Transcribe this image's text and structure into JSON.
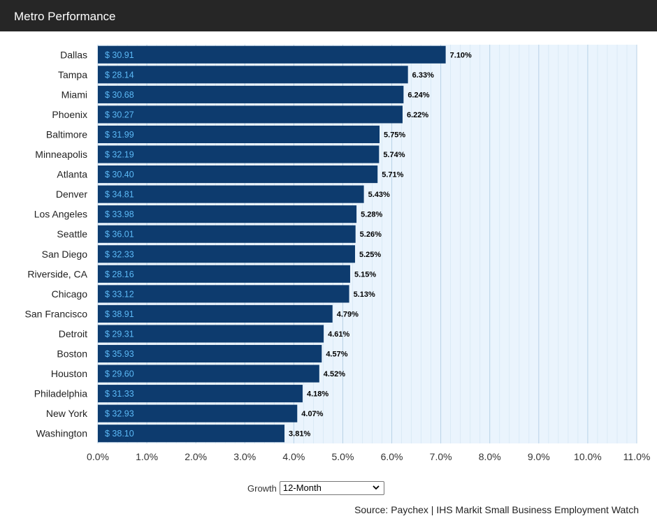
{
  "header": {
    "title": "Metro Performance"
  },
  "controls": {
    "growth_label": "Growth",
    "growth_selected": "12-Month"
  },
  "source": "Source: Paychex | IHS Markit Small Business Employment Watch",
  "colors": {
    "bar": "#0d3b6e",
    "wage_text": "#5bb8f5",
    "plot_bg": "#eaf4fd",
    "grid": "#c7dcec",
    "header_bg": "#262626"
  },
  "icons": {
    "dropdown": "chevron-down-icon"
  },
  "chart_data": {
    "type": "bar",
    "orientation": "horizontal",
    "categories": [
      "Dallas",
      "Tampa",
      "Miami",
      "Phoenix",
      "Baltimore",
      "Minneapolis",
      "Atlanta",
      "Denver",
      "Los Angeles",
      "Seattle",
      "San Diego",
      "Riverside, CA",
      "Chicago",
      "San Francisco",
      "Detroit",
      "Boston",
      "Houston",
      "Philadelphia",
      "New York",
      "Washington"
    ],
    "values": [
      7.1,
      6.33,
      6.24,
      6.22,
      5.75,
      5.74,
      5.71,
      5.43,
      5.28,
      5.26,
      5.25,
      5.15,
      5.13,
      4.79,
      4.61,
      4.57,
      4.52,
      4.18,
      4.07,
      3.81
    ],
    "value_labels": [
      "7.10%",
      "6.33%",
      "6.24%",
      "6.22%",
      "5.75%",
      "5.74%",
      "5.71%",
      "5.43%",
      "5.28%",
      "5.26%",
      "5.25%",
      "5.15%",
      "5.13%",
      "4.79%",
      "4.61%",
      "4.57%",
      "4.52%",
      "4.18%",
      "4.07%",
      "3.81%"
    ],
    "bar_labels": [
      "$ 30.91",
      "$ 28.14",
      "$ 30.68",
      "$ 30.27",
      "$ 31.99",
      "$ 32.19",
      "$ 30.40",
      "$ 34.81",
      "$ 33.98",
      "$ 36.01",
      "$ 32.33",
      "$ 28.16",
      "$ 33.12",
      "$ 38.91",
      "$ 29.31",
      "$ 35.93",
      "$ 29.60",
      "$ 31.33",
      "$ 32.93",
      "$ 38.10"
    ],
    "xlim": [
      0,
      11
    ],
    "xticks": [
      0,
      1,
      2,
      3,
      4,
      5,
      6,
      7,
      8,
      9,
      10,
      11
    ],
    "xtick_labels": [
      "0.0%",
      "1.0%",
      "2.0%",
      "3.0%",
      "4.0%",
      "5.0%",
      "6.0%",
      "7.0%",
      "8.0%",
      "9.0%",
      "10.0%",
      "11.0%"
    ],
    "title": "",
    "xlabel": "",
    "ylabel": "",
    "grid": true
  }
}
